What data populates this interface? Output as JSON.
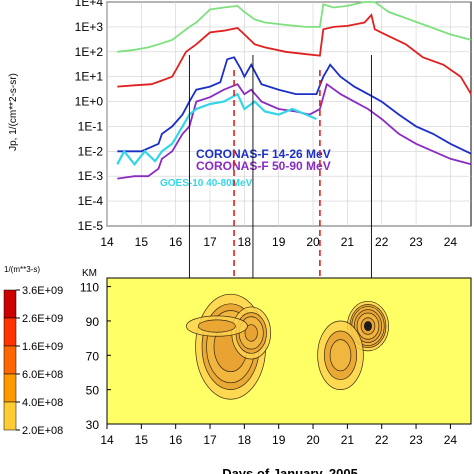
{
  "chart_data": [
    {
      "type": "line",
      "ylabel": "Jp, 1/(cm**2-s-sr)",
      "y_scale": "log",
      "ylim": [
        1e-05,
        10000.0
      ],
      "xlim": [
        14,
        24.6
      ],
      "grid": true,
      "x_ticks": [
        "14",
        "15",
        "16",
        "17",
        "18",
        "19",
        "20",
        "21",
        "22",
        "23",
        "24"
      ],
      "y_ticks": [
        "1E-5",
        "1E-4",
        "1E-3",
        "1E-2",
        "1E-1",
        "1E+0",
        "1E+1",
        "1E+2",
        "1E+3",
        "1E+4"
      ],
      "legend": [
        {
          "name": "CORONAS-F 14-26 MeV",
          "color": "#1b2fc8"
        },
        {
          "name": "CORONAS-F 50-90 MeV",
          "color": "#8a2bc2"
        },
        {
          "name": "GOES-10 40-80MeV",
          "color": "#33d6e6"
        }
      ],
      "series": [
        {
          "color": "#7fe07f",
          "x": [
            14.3,
            14.8,
            15.2,
            15.5,
            15.9,
            16.4,
            16.6,
            17.0,
            17.4,
            17.8,
            18.0,
            18.3,
            18.6,
            19.2,
            19.8,
            20.2,
            20.3,
            20.6,
            21.0,
            21.5,
            21.7,
            21.8,
            22.2,
            22.8,
            23.4,
            24.0,
            24.6
          ],
          "y": [
            100.0,
            120.0,
            150.0,
            200.0,
            300.0,
            1000.0,
            1500.0,
            5000.0,
            6000.0,
            7000.0,
            4000.0,
            2000.0,
            1500.0,
            1200.0,
            1000.0,
            1000.0,
            8000.0,
            6000.0,
            7000.0,
            10000.0,
            20000.0,
            10000.0,
            4000.0,
            2000.0,
            1000.0,
            500.0,
            300.0
          ]
        },
        {
          "color": "#e02020",
          "x": [
            14.3,
            14.8,
            15.3,
            15.6,
            15.9,
            16.3,
            16.6,
            17.0,
            17.4,
            17.8,
            18.0,
            18.3,
            18.6,
            19.2,
            19.8,
            20.2,
            20.3,
            20.6,
            21.0,
            21.5,
            21.7,
            21.8,
            22.1,
            22.7,
            23.2,
            23.8,
            24.3,
            24.6
          ],
          "y": [
            4,
            4.5,
            5,
            7,
            10,
            100,
            200,
            600,
            700,
            900,
            500,
            200,
            150,
            100,
            80,
            70,
            800,
            1000,
            1100,
            1500,
            3000,
            800,
            500,
            200,
            60,
            30,
            10,
            2
          ]
        },
        {
          "color": "#1b2fc8",
          "x": [
            14.3,
            15.0,
            15.5,
            15.6,
            15.9,
            16.2,
            16.4,
            16.6,
            17.0,
            17.3,
            17.5,
            17.7,
            17.9,
            18.0,
            18.2,
            18.5,
            19.0,
            19.5,
            19.9,
            20.1,
            20.3,
            20.5,
            20.8,
            21.2,
            21.6,
            22.0,
            22.5,
            23.0,
            23.5,
            24.0,
            24.6
          ],
          "y": [
            0.01,
            0.01,
            0.02,
            0.05,
            0.1,
            0.3,
            1,
            3,
            4,
            6,
            50,
            60,
            20,
            10,
            30,
            5,
            3,
            2,
            2,
            2,
            10,
            30,
            10,
            4,
            2,
            1,
            0.3,
            0.1,
            0.05,
            0.02,
            0.008
          ]
        },
        {
          "color": "#8a2bc2",
          "x": [
            14.3,
            14.8,
            15.2,
            15.5,
            15.6,
            15.9,
            16.2,
            16.4,
            16.6,
            17.0,
            17.4,
            17.8,
            18.0,
            18.2,
            18.5,
            19.0,
            19.5,
            19.9,
            20.2,
            20.4,
            20.8,
            21.2,
            21.6,
            22.0,
            22.5,
            23.0,
            23.5,
            24.0,
            24.6
          ],
          "y": [
            0.0008,
            0.001,
            0.001,
            0.002,
            0.005,
            0.01,
            0.05,
            0.1,
            1,
            1.5,
            3,
            5,
            2,
            3,
            1,
            0.5,
            0.4,
            0.3,
            0.5,
            5,
            2,
            1,
            0.5,
            0.2,
            0.05,
            0.02,
            0.01,
            0.005,
            0.003
          ]
        },
        {
          "color": "#33d6e6",
          "x": [
            14.3,
            14.5,
            14.8,
            15.1,
            15.4,
            15.6,
            15.9,
            16.2,
            16.4,
            16.6,
            17.0,
            17.4,
            17.8,
            18.0,
            18.3,
            18.6,
            19.0,
            19.4,
            19.8,
            20.1
          ],
          "y": [
            0.003,
            0.01,
            0.003,
            0.01,
            0.004,
            0.01,
            0.02,
            0.1,
            0.3,
            0.5,
            0.8,
            1,
            2,
            0.5,
            1,
            0.4,
            0.3,
            0.5,
            0.3,
            0.2
          ]
        }
      ],
      "markers": [
        {
          "x": 16.4,
          "style": "solid"
        },
        {
          "x": 17.7,
          "style": "dashed"
        },
        {
          "x": 18.25,
          "style": "solid"
        },
        {
          "x": 20.2,
          "style": "dashed"
        },
        {
          "x": 21.7,
          "style": "solid"
        }
      ]
    },
    {
      "type": "heatmap",
      "ylabel": "KM",
      "ylim": [
        30,
        115
      ],
      "xlim": [
        14,
        24.6
      ],
      "y_ticks": [
        "30",
        "50",
        "70",
        "90",
        "110"
      ],
      "x_ticks": [
        "14",
        "15",
        "16",
        "17",
        "18",
        "19",
        "20",
        "21",
        "22",
        "23",
        "24"
      ],
      "xlabel": "Days of January, 2005",
      "colorbar": {
        "unit": "1/(m**3-s)",
        "ticks": [
          "3.6E+09",
          "2.6E+09",
          "1.6E+09",
          "6.0E+08",
          "4.0E+08",
          "2.0E+08"
        ],
        "colors": [
          "#cc0000",
          "#ff3300",
          "#ff6600",
          "#ff9900",
          "#ffcc33",
          "#ffff66"
        ]
      },
      "blobs": [
        {
          "x": 17.6,
          "y": 75,
          "sx": 0.5,
          "sy": 15,
          "peak": 1600000000.0
        },
        {
          "x": 18.2,
          "y": 83,
          "sx": 0.3,
          "sy": 8,
          "peak": 1200000000.0
        },
        {
          "x": 17.2,
          "y": 87,
          "sx": 0.6,
          "sy": 4,
          "peak": 600000000.0
        },
        {
          "x": 21.6,
          "y": 87,
          "sx": 0.25,
          "sy": 6,
          "peak": 3600000000.0
        },
        {
          "x": 20.8,
          "y": 70,
          "sx": 0.4,
          "sy": 12,
          "peak": 800000000.0
        }
      ]
    }
  ]
}
